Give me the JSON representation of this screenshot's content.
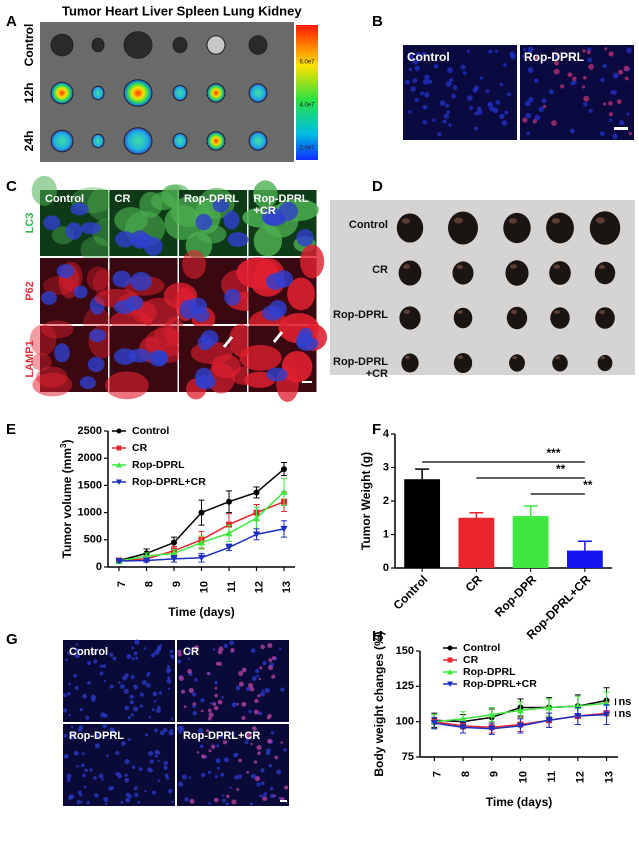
{
  "panels": {
    "A": {
      "label": "A",
      "title": "Tumor Heart Liver Spleen Lung Kidney",
      "rows": [
        "Control",
        "12h",
        "24h"
      ],
      "colorbar": [
        "6.0e7",
        "4.0e7",
        "2.0e7"
      ]
    },
    "B": {
      "label": "B",
      "labels": [
        "Control",
        "Rop-DPRL"
      ]
    },
    "C": {
      "label": "C",
      "columns": [
        [
          "Control"
        ],
        [
          "CR"
        ],
        [
          "Rop-DPRL"
        ],
        [
          "Rop-DPRL",
          "+CR"
        ]
      ],
      "rows": [
        "LC3",
        "P62",
        "LAMP1"
      ],
      "row_colors": [
        "#2db84a",
        "#e8323c",
        "#e8323c"
      ]
    },
    "D": {
      "label": "D",
      "rows": [
        [
          "Control"
        ],
        [
          "CR"
        ],
        [
          "Rop-DPRL"
        ],
        [
          "Rop-DPRL",
          "+CR"
        ]
      ]
    },
    "G": {
      "label": "G",
      "labels": [
        "Control",
        "CR",
        "Rop-DPRL",
        "Rop-DPRL+CR"
      ]
    }
  },
  "chart_data": [
    {
      "type": "line",
      "panel_label": "E",
      "y_label": [
        "Tumor volume (mm",
        "3",
        ")"
      ],
      "x_label": "Time (days)",
      "x": [
        7,
        8,
        9,
        10,
        11,
        12,
        13
      ],
      "xlim": [
        6.6,
        13.4
      ],
      "xticks": [
        7,
        8,
        9,
        10,
        11,
        12,
        13
      ],
      "ylim": [
        0,
        2500
      ],
      "yticks": [
        0,
        500,
        1000,
        1500,
        2000,
        2500
      ],
      "series": [
        {
          "name": "Control",
          "color": "#000000",
          "marker": "circle",
          "values": [
            120,
            250,
            450,
            1000,
            1200,
            1370,
            1800
          ],
          "errors": [
            30,
            80,
            100,
            230,
            200,
            100,
            120
          ]
        },
        {
          "name": "CR",
          "color": "#e8262b",
          "marker": "square",
          "values": [
            120,
            150,
            300,
            500,
            780,
            1000,
            1200
          ],
          "errors": [
            30,
            50,
            80,
            150,
            200,
            150,
            180
          ]
        },
        {
          "name": "Rop-DPRL",
          "color": "#3ee83e",
          "marker": "triangle",
          "values": [
            110,
            200,
            250,
            450,
            620,
            900,
            1380
          ],
          "errors": [
            30,
            60,
            70,
            120,
            150,
            200,
            250
          ]
        },
        {
          "name": "Rop-DPRL+CR",
          "color": "#1c2fc4",
          "marker": "down",
          "values": [
            110,
            120,
            150,
            170,
            360,
            600,
            700
          ],
          "errors": [
            20,
            30,
            60,
            80,
            60,
            100,
            150
          ]
        }
      ]
    },
    {
      "type": "bar",
      "panel_label": "F",
      "y_label": "Tumor Weight (g)",
      "categories": [
        "Control",
        "CR",
        "Rop-DPR",
        "Rop-DPRL+CR"
      ],
      "values": [
        2.65,
        1.5,
        1.55,
        0.52
      ],
      "errors": [
        0.3,
        0.15,
        0.3,
        0.28
      ],
      "colors": [
        "#000000",
        "#e8262b",
        "#3ee83e",
        "#1414f0"
      ],
      "ylim": [
        0,
        4
      ],
      "yticks": [
        0,
        1,
        2,
        3,
        4
      ],
      "annotations": [
        "***",
        "**",
        "**"
      ]
    },
    {
      "type": "line",
      "panel_label": "H",
      "y_label": "Body weight changes (%)",
      "x_label": "Time (days)",
      "x": [
        7,
        8,
        9,
        10,
        11,
        12,
        13
      ],
      "xlim": [
        6.5,
        13.4
      ],
      "xticks": [
        7,
        8,
        9,
        10,
        11,
        12,
        13
      ],
      "ylim": [
        75,
        150
      ],
      "yticks": [
        75,
        100,
        125,
        150
      ],
      "series": [
        {
          "name": "Control",
          "color": "#000000",
          "marker": "circle",
          "values": [
            101,
            100,
            103,
            110,
            110,
            111,
            115
          ],
          "errors": [
            5,
            5,
            6,
            6,
            7,
            8,
            9
          ]
        },
        {
          "name": "CR",
          "color": "#e8262b",
          "marker": "square",
          "values": [
            100,
            97,
            96,
            98,
            101,
            104,
            106
          ],
          "errors": [
            5,
            5,
            4,
            5,
            5,
            6,
            8
          ]
        },
        {
          "name": "Rop-DPRL",
          "color": "#3ee83e",
          "marker": "triangle",
          "values": [
            100,
            102,
            105,
            108,
            110,
            111,
            113
          ],
          "errors": [
            5,
            5,
            5,
            6,
            6,
            7,
            8
          ]
        },
        {
          "name": "Rop-DPRL+CR",
          "color": "#1c2fc4",
          "marker": "down",
          "values": [
            99,
            96,
            95,
            97,
            101,
            104,
            105
          ],
          "errors": [
            4,
            4,
            4,
            5,
            5,
            6,
            7
          ]
        }
      ],
      "annotations": [
        "ns",
        "ns"
      ]
    }
  ]
}
